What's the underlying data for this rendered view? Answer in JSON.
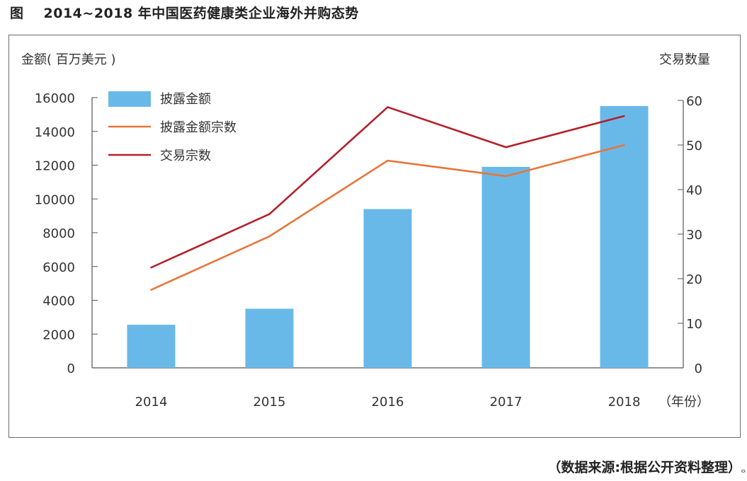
{
  "title": {
    "prefix": "图",
    "text": "2014~2018 年中国医药健康类企业海外并购态势"
  },
  "source": "（数据来源:根据公开资料整理）",
  "corner_mark": "ⴰ",
  "chart_data": {
    "type": "bar+line",
    "ylabel_left": "金额(  百万美元  )",
    "ylabel_right": "交易数量",
    "xunit": "（年份）",
    "categories": [
      "2014",
      "2015",
      "2016",
      "2017",
      "2018"
    ],
    "y_left_ticks": [
      "0",
      "2000",
      "4000",
      "6000",
      "8000",
      "10000",
      "12000",
      "14000",
      "16000"
    ],
    "y_right_ticks": [
      "0",
      "10",
      "20",
      "30",
      "40",
      "50",
      "60"
    ],
    "ylim_left": [
      0,
      16000
    ],
    "ylim_right": [
      0,
      60
    ],
    "legend_position": "top-left",
    "series": [
      {
        "name": "披露金额",
        "kind": "bar",
        "axis": "left",
        "color": "#69b9e8",
        "values": [
          2550,
          3500,
          9400,
          11900,
          15500
        ]
      },
      {
        "name": "披露金额宗数",
        "kind": "line",
        "axis": "right",
        "color": "#e8743a",
        "values": [
          17.5,
          29.5,
          46.5,
          43,
          50
        ]
      },
      {
        "name": "交易宗数",
        "kind": "line",
        "axis": "right",
        "color": "#b3202a",
        "values": [
          22.5,
          34.5,
          58.5,
          49.5,
          56.5
        ]
      }
    ]
  }
}
